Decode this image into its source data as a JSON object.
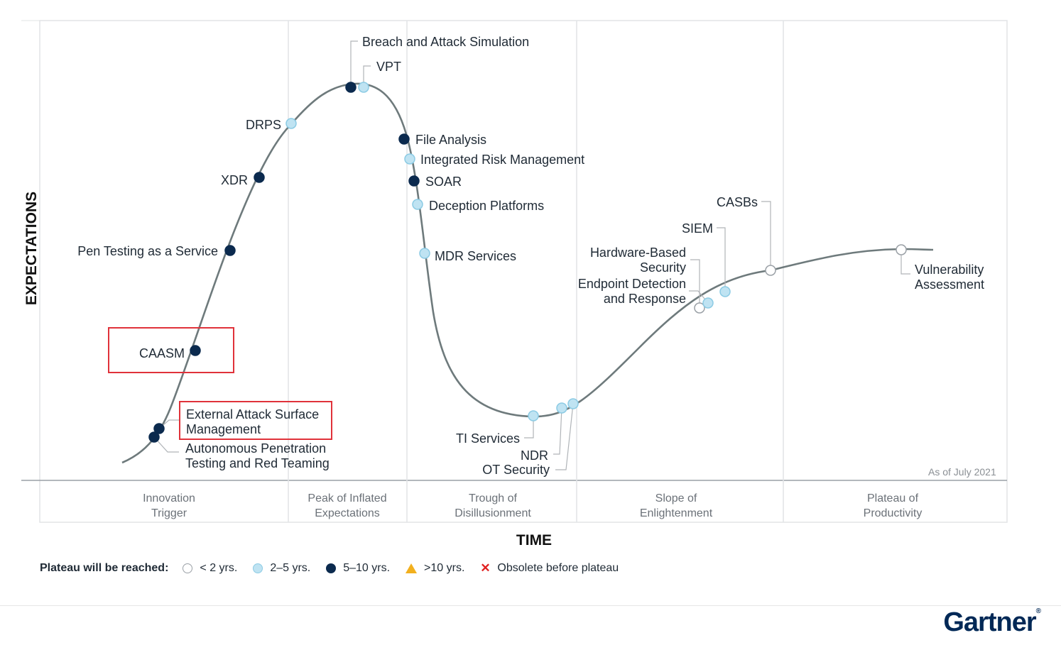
{
  "chart_data": {
    "type": "hype-cycle",
    "xlabel": "TIME",
    "ylabel": "EXPECTATIONS",
    "as_of": "As of July 2021",
    "phases": [
      [
        "Innovation",
        "Trigger"
      ],
      [
        "Peak of Inflated",
        "Expectations"
      ],
      [
        "Trough of",
        "Disillusionment"
      ],
      [
        "Slope of",
        "Enlightenment"
      ],
      [
        "Plateau of",
        "Productivity"
      ]
    ],
    "legend": {
      "title": "Plateau will be reached:",
      "items": [
        {
          "key": "lt2",
          "label": "< 2 yrs.",
          "color": "#ffffff"
        },
        {
          "key": "2to5",
          "label": "2–5 yrs.",
          "color": "#bfe3f2"
        },
        {
          "key": "5to10",
          "label": "5–10 yrs.",
          "color": "#0b2a4e"
        },
        {
          "key": "gt10",
          "label": ">10 yrs.",
          "color": "#f2b01e"
        },
        {
          "key": "obsolete",
          "label": "Obsolete before plateau",
          "color": "#e02020"
        }
      ]
    },
    "technologies": [
      {
        "name": [
          "Autonomous Penetration",
          "Testing and Red Teaming"
        ],
        "category": "5to10",
        "highlighted": false
      },
      {
        "name": [
          "External Attack Surface",
          "Management"
        ],
        "category": "5to10",
        "highlighted": true
      },
      {
        "name": [
          "CAASM"
        ],
        "category": "5to10",
        "highlighted": true
      },
      {
        "name": [
          "Pen Testing as a Service"
        ],
        "category": "5to10",
        "highlighted": false
      },
      {
        "name": [
          "XDR"
        ],
        "category": "5to10",
        "highlighted": false
      },
      {
        "name": [
          "DRPS"
        ],
        "category": "2to5",
        "highlighted": false
      },
      {
        "name": [
          "Breach and Attack Simulation"
        ],
        "category": "5to10",
        "highlighted": false
      },
      {
        "name": [
          "VPT"
        ],
        "category": "2to5",
        "highlighted": false
      },
      {
        "name": [
          "File Analysis"
        ],
        "category": "5to10",
        "highlighted": false
      },
      {
        "name": [
          "Integrated Risk Management"
        ],
        "category": "2to5",
        "highlighted": false
      },
      {
        "name": [
          "SOAR"
        ],
        "category": "5to10",
        "highlighted": false
      },
      {
        "name": [
          "Deception Platforms"
        ],
        "category": "2to5",
        "highlighted": false
      },
      {
        "name": [
          "MDR Services"
        ],
        "category": "2to5",
        "highlighted": false
      },
      {
        "name": [
          "TI Services"
        ],
        "category": "2to5",
        "highlighted": false
      },
      {
        "name": [
          "NDR"
        ],
        "category": "2to5",
        "highlighted": false
      },
      {
        "name": [
          "OT Security"
        ],
        "category": "2to5",
        "highlighted": false
      },
      {
        "name": [
          "Hardware-Based",
          "Security"
        ],
        "category": "lt2",
        "highlighted": false
      },
      {
        "name": [
          "Endpoint Detection",
          "and Response"
        ],
        "category": "2to5",
        "highlighted": false
      },
      {
        "name": [
          "SIEM"
        ],
        "category": "2to5",
        "highlighted": false
      },
      {
        "name": [
          "CASBs"
        ],
        "category": "lt2",
        "highlighted": false
      },
      {
        "name": [
          "Vulnerability",
          "Assessment"
        ],
        "category": "lt2",
        "highlighted": false
      }
    ]
  },
  "brand": {
    "name": "Gartner",
    "mark": "®"
  }
}
